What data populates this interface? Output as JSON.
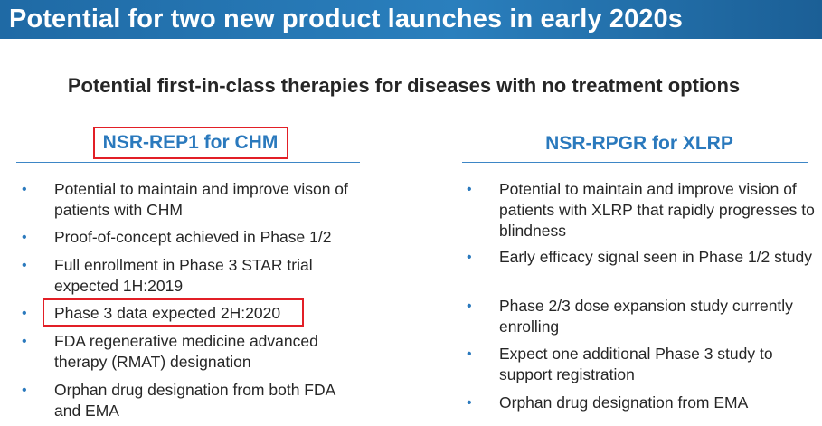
{
  "slide": {
    "title": "Potential for two new product launches in early 2020s",
    "subtitle": "Potential first-in-class therapies for diseases with no treatment options"
  },
  "columns": [
    {
      "heading": "NSR-REP1 for CHM",
      "items": [
        {
          "bullet": "•",
          "text": "Potential to maintain and improve vison of patients with CHM"
        },
        {
          "bullet": "•",
          "text": "Proof-of-concept achieved in Phase 1/2"
        },
        {
          "bullet": "•",
          "text": "Full enrollment in Phase 3 STAR trial expected 1H:2019"
        },
        {
          "bullet": "•",
          "text": "Phase 3 data expected 2H:2020"
        },
        {
          "bullet": "•",
          "text": "FDA regenerative medicine advanced therapy (RMAT) designation"
        },
        {
          "bullet": "•",
          "text": "Orphan drug designation from both FDA and EMA"
        }
      ]
    },
    {
      "heading": "NSR-RPGR for XLRP",
      "items": [
        {
          "bullet": "•",
          "text": "Potential to maintain and improve vision of patients with XLRP that rapidly progresses to blindness"
        },
        {
          "bullet": "•",
          "text": "Early efficacy signal seen in Phase 1/2 study"
        },
        {
          "bullet": "•",
          "text": "Phase 2/3 dose expansion study currently enrolling"
        },
        {
          "bullet": "•",
          "text": "Expect one additional Phase 3 study to support registration"
        },
        {
          "bullet": "•",
          "text": "Orphan drug designation from EMA"
        }
      ]
    }
  ],
  "colors": {
    "title_bar": "#2a7fbd",
    "heading": "#2a79bd",
    "highlight_box": "#e21f26"
  }
}
